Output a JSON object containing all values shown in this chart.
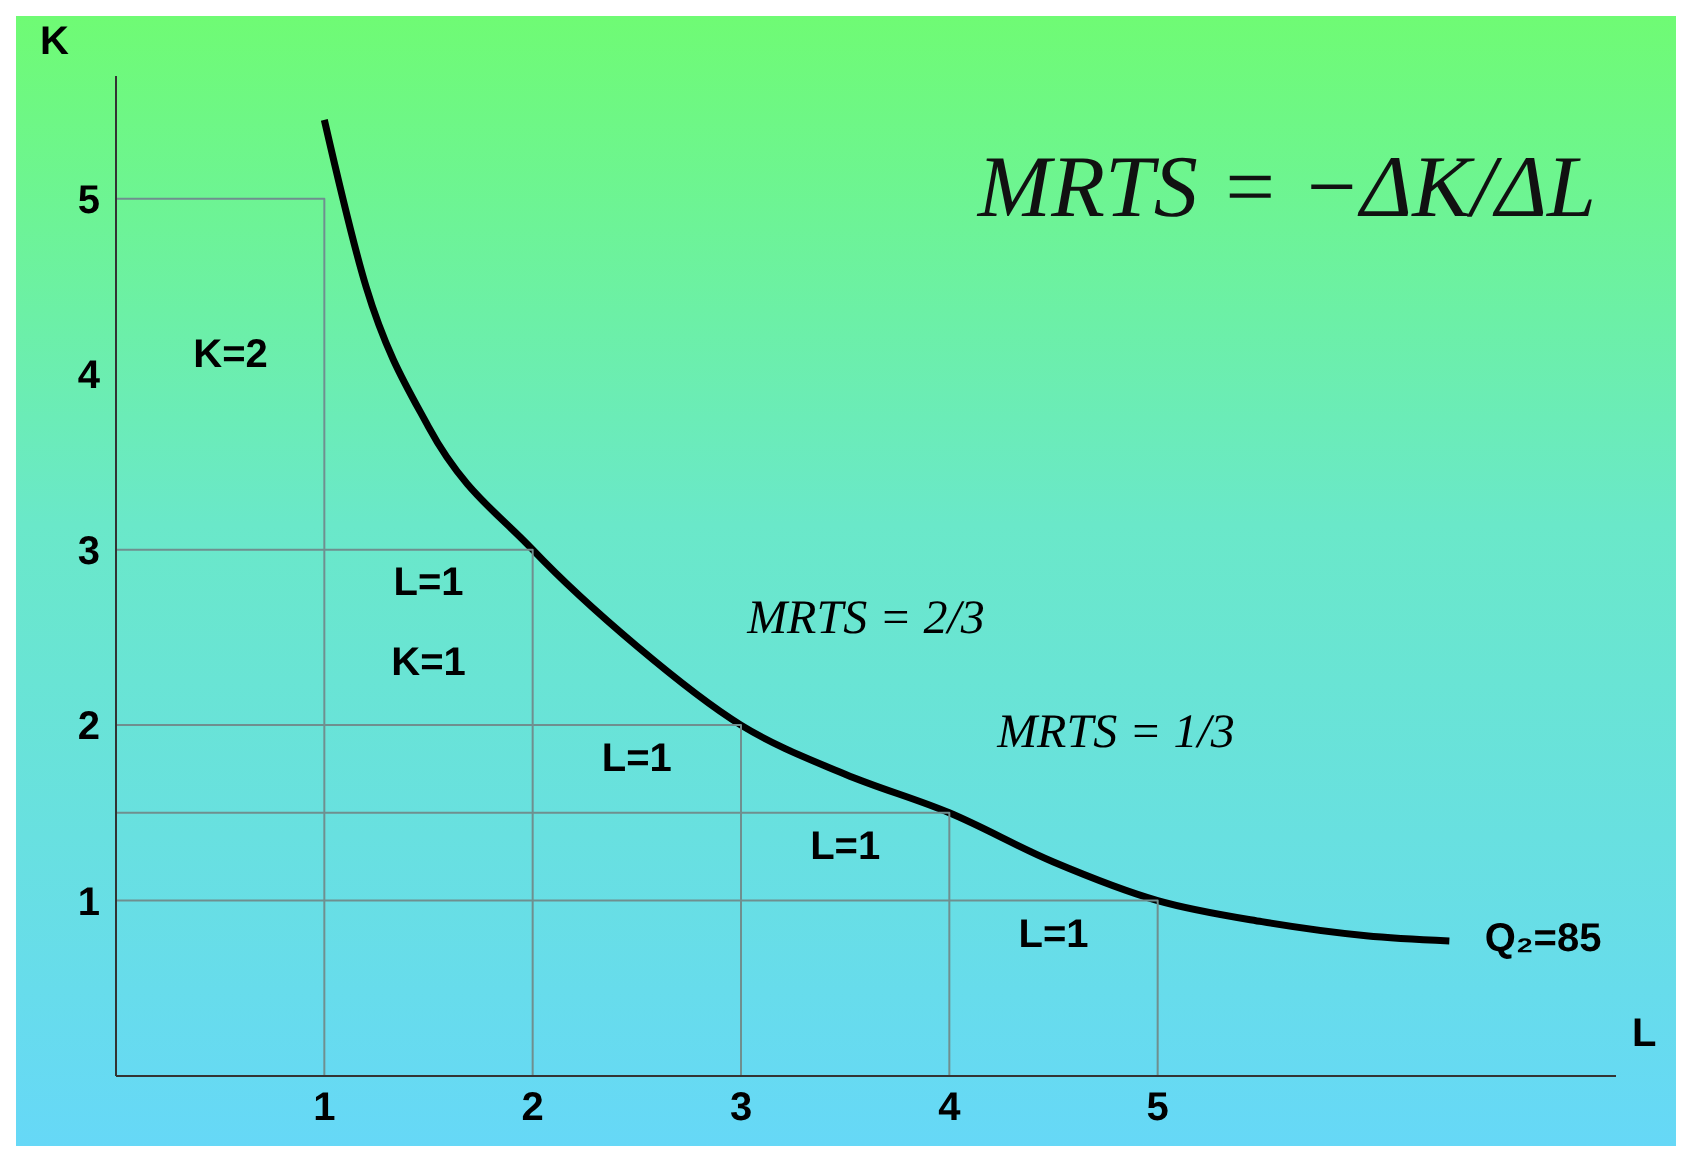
{
  "chart_data": {
    "type": "line",
    "xlabel": "L",
    "ylabel": "K",
    "xlim": [
      0,
      7.2
    ],
    "ylim": [
      0,
      5.7
    ],
    "xticks": [
      1,
      2,
      3,
      4,
      5
    ],
    "yticks": [
      1,
      2,
      3,
      4,
      5
    ],
    "grid": false,
    "series": [
      {
        "color": "#000000",
        "x": [
          1,
          1.2,
          1.5,
          2,
          2.5,
          3,
          3.5,
          4,
          4.5,
          5,
          5.5,
          6,
          6.4
        ],
        "values": [
          5.45,
          4.5,
          3.7,
          3,
          2.45,
          2,
          1.72,
          1.5,
          1.22,
          1,
          0.88,
          0.8,
          0.77
        ]
      },
      {
        "color": "#6f8f8f",
        "x": [
          0,
          1,
          1,
          2,
          2,
          0,
          0,
          3,
          3,
          4,
          4,
          0,
          0,
          5,
          5
        ],
        "values": [
          5,
          5,
          0,
          0,
          3,
          3,
          2,
          2,
          0,
          0,
          1.5,
          1.5,
          1,
          1,
          0
        ]
      }
    ],
    "annotations": [
      "MRTS = −ΔK/ΔL",
      "K=2",
      "L=1",
      "K=1",
      "L=1",
      "L=1",
      "L=1",
      "MRTS = 2/3",
      "MRTS = 1/3",
      "Q₂=85"
    ]
  }
}
